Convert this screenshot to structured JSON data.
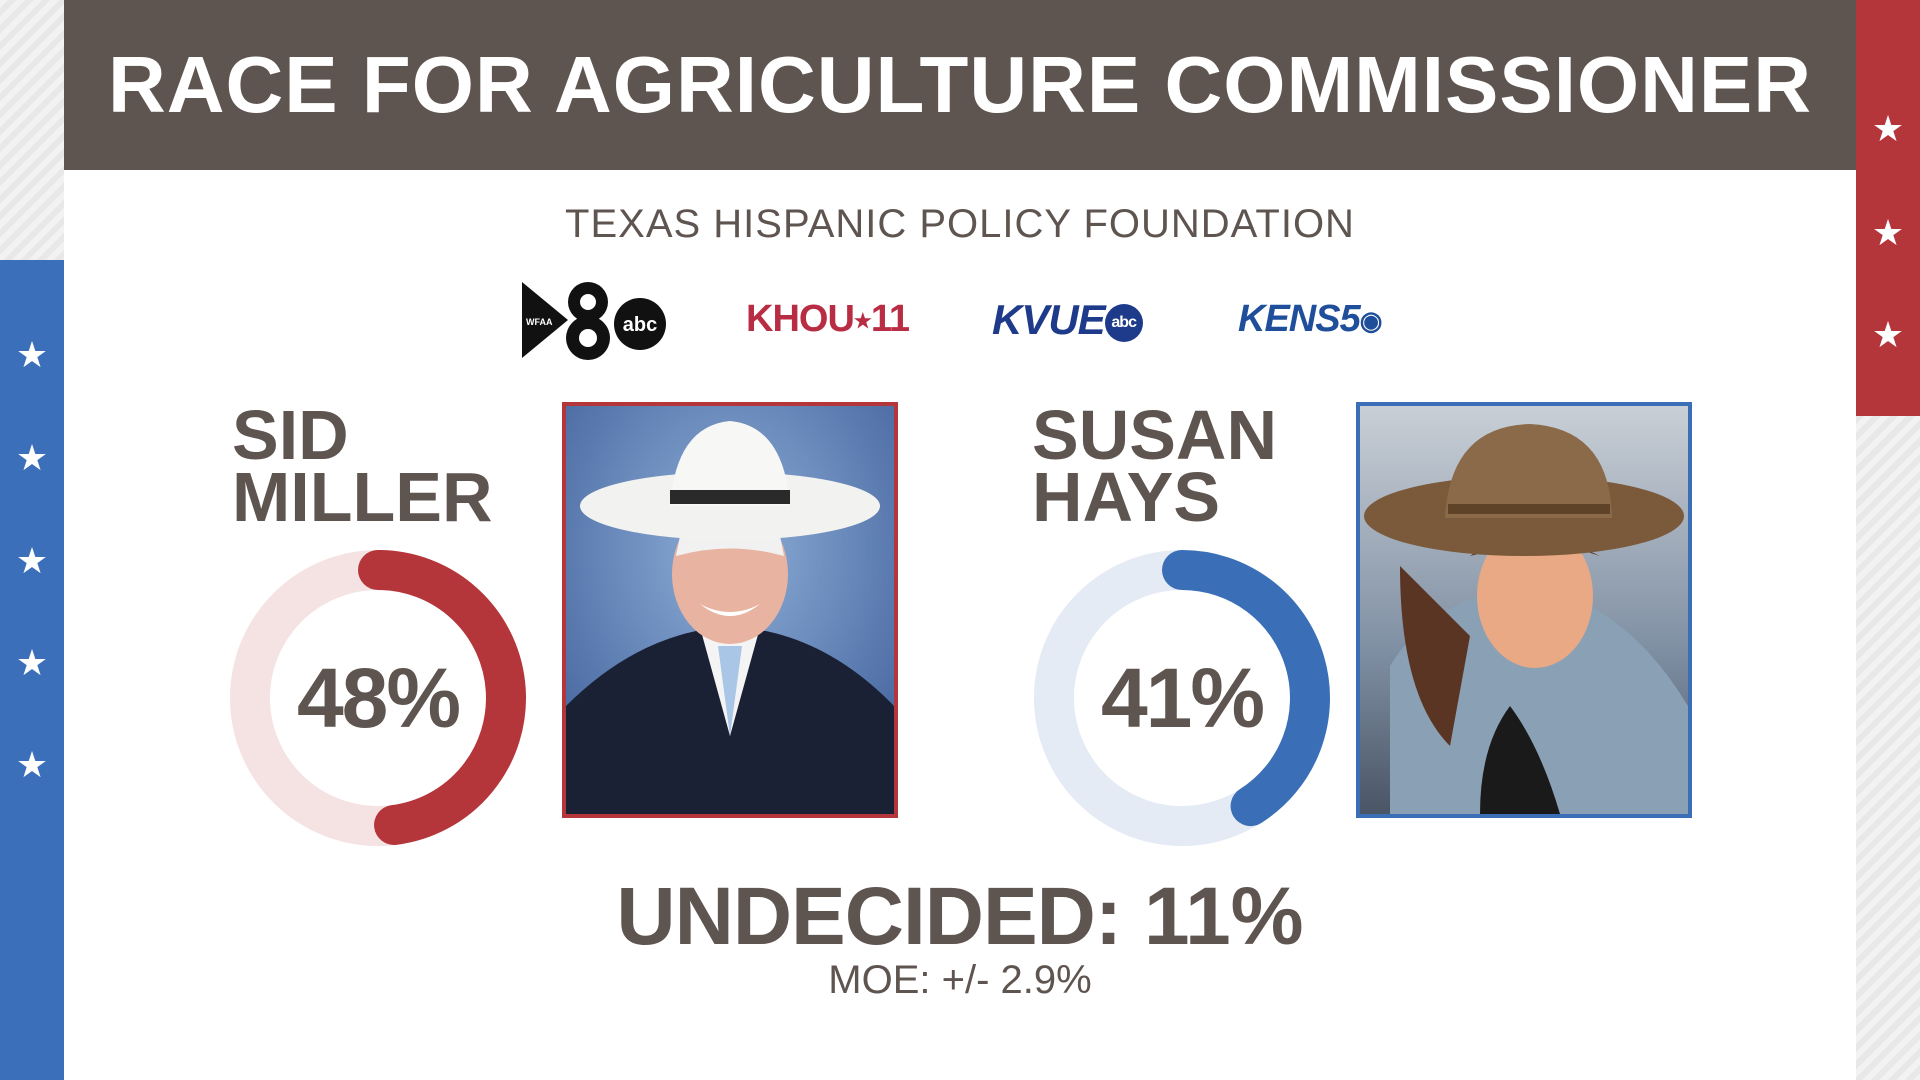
{
  "header": {
    "title": "RACE FOR AGRICULTURE COMMISSIONER"
  },
  "source": "TEXAS HISPANIC POLICY FOUNDATION",
  "logos": {
    "wfaa": {
      "small": "WFAA",
      "num": "8",
      "abc": "abc"
    },
    "khou": {
      "text": "KHOU",
      "num": "11"
    },
    "kvue": {
      "text": "KVUE",
      "abc": "abc"
    },
    "kens": {
      "text": "KENS",
      "num": "5"
    }
  },
  "colors": {
    "red": "#b4363b",
    "blue": "#3a6fb8",
    "brown": "#5f5550",
    "redLight": "#f5e3e3",
    "blueLight": "#e4ebf5"
  },
  "chart_data": [
    {
      "type": "pie",
      "name_lines": [
        "SID",
        "MILLER"
      ],
      "value": 48,
      "label": "48%",
      "color": "#b4363b",
      "track_color": "#f5e3e3"
    },
    {
      "type": "pie",
      "name_lines": [
        "SUSAN",
        "HAYS"
      ],
      "value": 41,
      "label": "41%",
      "color": "#3a6fb8",
      "track_color": "#e4ebf5"
    }
  ],
  "undecided": {
    "label": "UNDECIDED:",
    "value": "11%"
  },
  "moe": "MOE: +/- 2.9%"
}
